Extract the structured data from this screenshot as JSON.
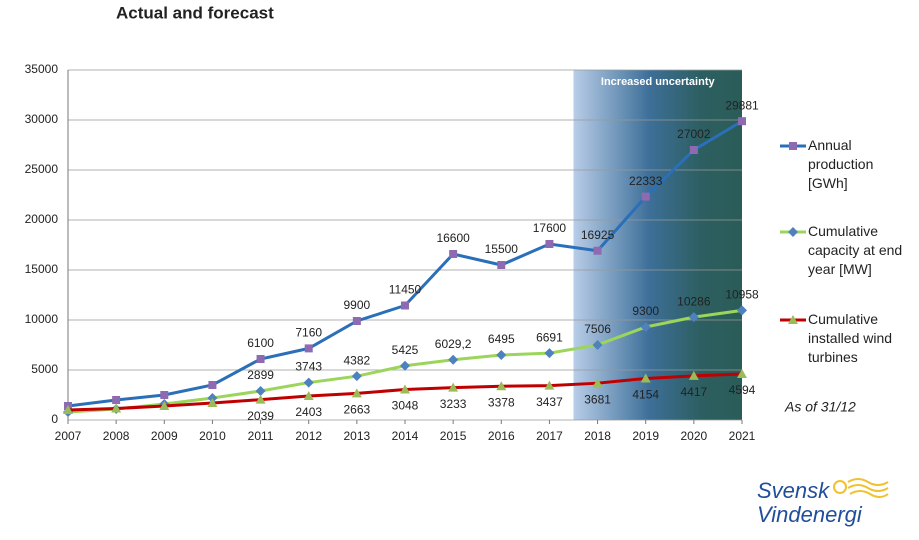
{
  "chart_data": {
    "type": "line",
    "title": "Actual and forecast",
    "categories": [
      "2007",
      "2008",
      "2009",
      "2010",
      "2011",
      "2012",
      "2013",
      "2014",
      "2015",
      "2016",
      "2017",
      "2018",
      "2019",
      "2020",
      "2021"
    ],
    "series": [
      {
        "name": "Annual production [GWh]",
        "color": "#2a6fb8",
        "marker": "square",
        "marker_color": "#8e6bb0",
        "values": [
          1400,
          2000,
          2500,
          3500,
          6100,
          7160,
          9900,
          11450,
          16600,
          15500,
          17600,
          16925,
          22333,
          27002,
          29881
        ],
        "value_labels": [
          null,
          null,
          null,
          null,
          "6100",
          "7160",
          "9900",
          "11450",
          "16600",
          "15500",
          "17600",
          "16925",
          "22333",
          "27002",
          "29881"
        ]
      },
      {
        "name": "Cumulative capacity at end year [MW]",
        "color": "#9bd55a",
        "marker": "diamond",
        "marker_color": "#4f81bd",
        "values": [
          800,
          1100,
          1600,
          2200,
          2899,
          3743,
          4382,
          5425,
          6029.2,
          6495,
          6691,
          7506,
          9300,
          10286,
          10958
        ],
        "value_labels": [
          null,
          null,
          null,
          null,
          "2899",
          "3743",
          "4382",
          "5425",
          "6029,2",
          "6495",
          "6691",
          "7506",
          "9300",
          "10286",
          "10958"
        ]
      },
      {
        "name": "Cumulative installed wind turbines",
        "color": "#c00000",
        "marker": "triangle",
        "marker_color": "#9bbb59",
        "values": [
          1000,
          1150,
          1400,
          1700,
          2039,
          2403,
          2663,
          3048,
          3233,
          3378,
          3437,
          3681,
          4154,
          4417,
          4594
        ],
        "value_labels": [
          null,
          null,
          null,
          null,
          "2039",
          "2403",
          "2663",
          "3048",
          "3233",
          "3378",
          "3437",
          "3681",
          "4154",
          "4417",
          "4594"
        ]
      }
    ],
    "ylim": [
      0,
      35000
    ],
    "yticks": [
      0,
      5000,
      10000,
      15000,
      20000,
      25000,
      30000,
      35000
    ],
    "grid": true,
    "legend": "right",
    "shaded_region": {
      "label": "Increased uncertainty",
      "start": "2018",
      "end": "2021"
    }
  },
  "footer": {
    "note": "As of 31/12",
    "logo": [
      "Svensk",
      "Vindenergi"
    ]
  }
}
